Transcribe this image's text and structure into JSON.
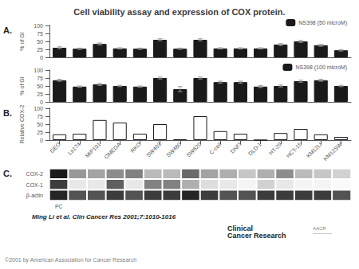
{
  "chart_data": [
    {
      "type": "bar",
      "title": "Cell viability assay and expression of COX protein.",
      "annotations": [
        "A."
      ],
      "categories": [
        "GEO",
        "Ls174",
        "MIP101",
        "OMEGA",
        "RKO",
        "SW403",
        "SW480",
        "SW620",
        "C-cell",
        "DNFI",
        "DLD-1",
        "HT-29",
        "HCT-15",
        "KM12LI",
        "KM12SW"
      ],
      "series": [
        {
          "name": "NS398 (50 microM)",
          "color": "#1a1a1a",
          "values": [
            30,
            27,
            42,
            28,
            27,
            55,
            27,
            55,
            28,
            28,
            28,
            40,
            50,
            38,
            22
          ],
          "errors": [
            3,
            2,
            3,
            2,
            2,
            3,
            2,
            3,
            2,
            2,
            2,
            3,
            3,
            3,
            2
          ]
        }
      ],
      "ylabel": "% of GI",
      "ylim": [
        0,
        100
      ],
      "yticks": [
        0,
        25,
        50,
        75,
        100
      ],
      "grid": false,
      "legend": "upper right",
      "tick_labels": "y"
    },
    {
      "type": "bar",
      "categories": [
        "GEO",
        "Ls174",
        "MIP101",
        "OMEGA",
        "RKO",
        "SW403",
        "SW480",
        "SW620",
        "C-cell",
        "DNFI",
        "DLD-1",
        "HT-29",
        "HCT-15",
        "KM12LI",
        "KM12SW"
      ],
      "series": [
        {
          "name": "NS398 (100 microM)",
          "color": "#1a1a1a",
          "values": [
            68,
            48,
            55,
            50,
            48,
            75,
            40,
            75,
            62,
            62,
            48,
            50,
            65,
            68,
            50
          ],
          "errors": [
            3,
            2,
            3,
            2,
            2,
            3,
            8,
            3,
            3,
            3,
            3,
            3,
            3,
            3,
            2
          ]
        }
      ],
      "ylabel": "% of GI",
      "ylim": [
        0,
        100
      ],
      "yticks": [
        0,
        25,
        50,
        75,
        100
      ],
      "grid": false,
      "legend": "upper right",
      "tick_labels": "y"
    },
    {
      "type": "bar",
      "annotations": [
        "B."
      ],
      "categories": [
        "GEO",
        "Ls174",
        "MIP101",
        "OMEGA",
        "RKO",
        "SW403",
        "SW480",
        "SW620",
        "C-cell",
        "DNFI",
        "DLD-1",
        "HT-29",
        "HCT-15",
        "KM12LI",
        "KM12SW"
      ],
      "values": [
        18,
        20,
        63,
        55,
        20,
        50,
        2,
        75,
        28,
        20,
        0,
        22,
        35,
        18,
        10
      ],
      "color": "#ffffff",
      "ylabel": "Relative COX-2",
      "ylim": [
        0,
        100
      ],
      "yticks": [
        0,
        25,
        50,
        75,
        100
      ],
      "grid": false
    },
    {
      "type": "heatmap",
      "annotations": [
        "C.",
        "Ming Li et al. Clin Cancer Res 2001;7:1010-1016",
        "Clinical\nCancer Research",
        "AACR\n————",
        "©2001 by American Association for Cancer Research"
      ],
      "x": [
        "PC",
        null,
        null,
        null,
        null,
        null,
        null,
        null,
        null,
        null,
        null,
        null,
        null,
        null,
        null,
        null
      ],
      "y": [
        "COX-2",
        "COX-1",
        "β-actin"
      ],
      "values": [
        [
          1.0,
          0.45,
          0.4,
          0.5,
          0.55,
          0.3,
          0.3,
          0.65,
          0.4,
          0.35,
          0.25,
          0.35,
          0.5,
          0.3,
          0.25,
          0.2
        ],
        [
          0.85,
          0.1,
          0.1,
          0.7,
          0.1,
          0.55,
          0.55,
          0.35,
          0.15,
          0.1,
          0.05,
          0.2,
          0.1,
          0.05,
          0.05,
          0.02
        ],
        [
          0.95,
          0.75,
          0.75,
          0.85,
          0.75,
          0.85,
          0.85,
          0.95,
          0.85,
          0.75,
          0.75,
          0.85,
          0.85,
          0.85,
          0.85,
          0.75
        ]
      ],
      "clim": [
        0,
        1
      ]
    }
  ]
}
